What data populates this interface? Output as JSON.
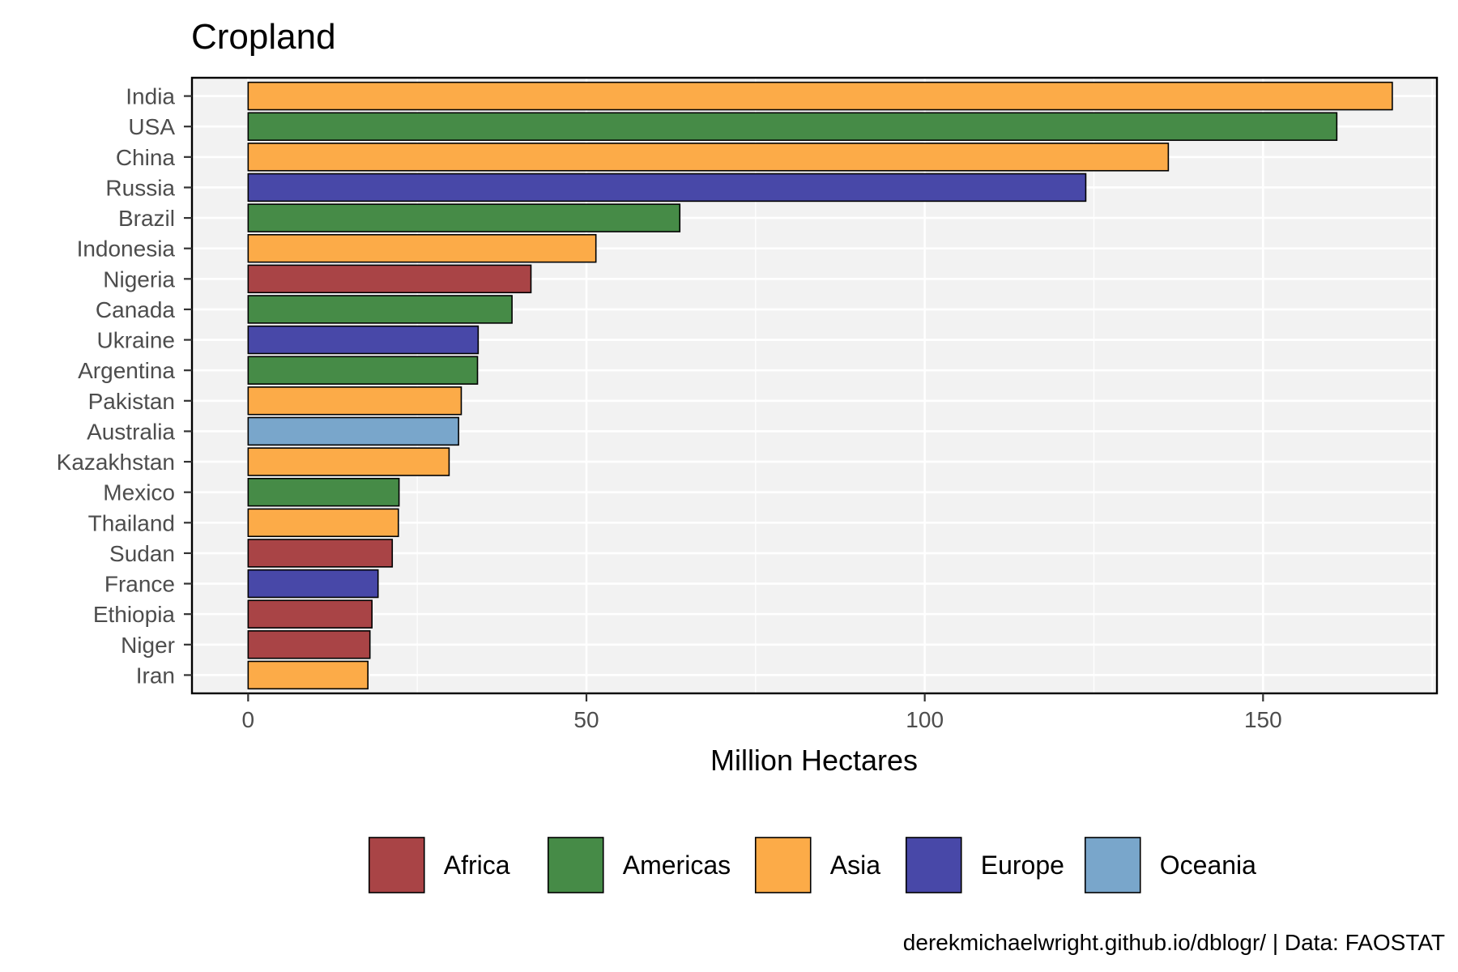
{
  "chart_data": {
    "type": "bar",
    "orientation": "horizontal",
    "title": "Cropland",
    "xlabel": "Million Hectares",
    "ylabel": "",
    "xlim": [
      -8.3,
      175.7
    ],
    "xticks": [
      0,
      50,
      100,
      150
    ],
    "grid": true,
    "legend_position": "bottom",
    "caption": "derekmichaelwright.github.io/dblogr/ | Data: FAOSTAT",
    "regions": [
      {
        "name": "Africa",
        "color": "#a94446"
      },
      {
        "name": "Americas",
        "color": "#468b47"
      },
      {
        "name": "Asia",
        "color": "#fcab48"
      },
      {
        "name": "Europe",
        "color": "#4848a8"
      },
      {
        "name": "Oceania",
        "color": "#79a6cb"
      }
    ],
    "bars": [
      {
        "country": "India",
        "region": "Asia",
        "value": 169.1
      },
      {
        "country": "USA",
        "region": "Americas",
        "value": 160.9
      },
      {
        "country": "China",
        "region": "Asia",
        "value": 136.0
      },
      {
        "country": "Russia",
        "region": "Europe",
        "value": 123.8
      },
      {
        "country": "Brazil",
        "region": "Americas",
        "value": 63.8
      },
      {
        "country": "Indonesia",
        "region": "Asia",
        "value": 51.4
      },
      {
        "country": "Nigeria",
        "region": "Africa",
        "value": 41.8
      },
      {
        "country": "Canada",
        "region": "Americas",
        "value": 39.0
      },
      {
        "country": "Ukraine",
        "region": "Europe",
        "value": 34.0
      },
      {
        "country": "Argentina",
        "region": "Americas",
        "value": 33.9
      },
      {
        "country": "Pakistan",
        "region": "Asia",
        "value": 31.5
      },
      {
        "country": "Australia",
        "region": "Oceania",
        "value": 31.1
      },
      {
        "country": "Kazakhstan",
        "region": "Asia",
        "value": 29.7
      },
      {
        "country": "Mexico",
        "region": "Americas",
        "value": 22.3
      },
      {
        "country": "Thailand",
        "region": "Asia",
        "value": 22.2
      },
      {
        "country": "Sudan",
        "region": "Africa",
        "value": 21.3
      },
      {
        "country": "France",
        "region": "Europe",
        "value": 19.2
      },
      {
        "country": "Ethiopia",
        "region": "Africa",
        "value": 18.3
      },
      {
        "country": "Niger",
        "region": "Africa",
        "value": 18.0
      },
      {
        "country": "Iran",
        "region": "Asia",
        "value": 17.7
      }
    ]
  }
}
